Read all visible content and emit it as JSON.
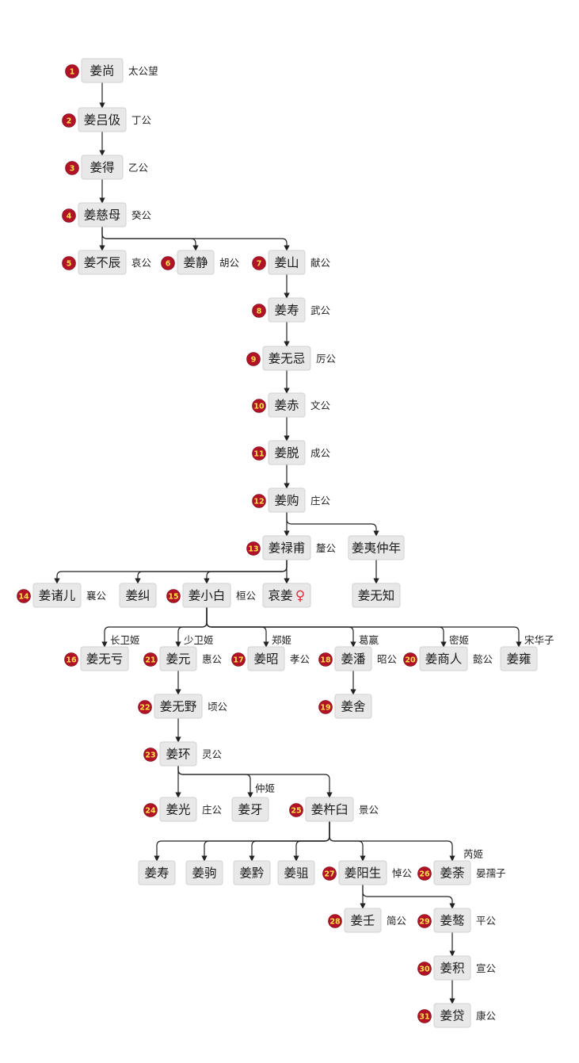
{
  "colors": {
    "badge": "#b11226",
    "badge_text": "#ffe24a",
    "box": "#e8e8e8",
    "edge": "#222222",
    "female_sign": "#e0303c"
  },
  "persons": [
    {
      "id": "p1",
      "name": "姜尚",
      "badge": "1",
      "title": "太公望"
    },
    {
      "id": "p2",
      "name": "姜吕伋",
      "badge": "2",
      "title": "丁公"
    },
    {
      "id": "p3",
      "name": "姜得",
      "badge": "3",
      "title": "乙公"
    },
    {
      "id": "p4",
      "name": "姜慈母",
      "badge": "4",
      "title": "癸公"
    },
    {
      "id": "p5",
      "name": "姜不辰",
      "badge": "5",
      "title": "哀公"
    },
    {
      "id": "p6",
      "name": "姜静",
      "badge": "6",
      "title": "胡公"
    },
    {
      "id": "p7",
      "name": "姜山",
      "badge": "7",
      "title": "献公"
    },
    {
      "id": "p8",
      "name": "姜寿",
      "badge": "8",
      "title": "武公"
    },
    {
      "id": "p9",
      "name": "姜无忌",
      "badge": "9",
      "title": "厉公"
    },
    {
      "id": "p10",
      "name": "姜赤",
      "badge": "10",
      "title": "文公"
    },
    {
      "id": "p11",
      "name": "姜脱",
      "badge": "11",
      "title": "成公"
    },
    {
      "id": "p12",
      "name": "姜购",
      "badge": "12",
      "title": "庄公"
    },
    {
      "id": "p13",
      "name": "姜禄甫",
      "badge": "13",
      "title": "釐公"
    },
    {
      "id": "pyz",
      "name": "姜夷仲年"
    },
    {
      "id": "pwz",
      "name": "姜无知"
    },
    {
      "id": "p14",
      "name": "姜诸儿",
      "badge": "14",
      "title": "襄公"
    },
    {
      "id": "pjiu",
      "name": "姜纠"
    },
    {
      "id": "p15",
      "name": "姜小白",
      "badge": "15",
      "title": "桓公"
    },
    {
      "id": "paj",
      "name": "哀姜",
      "female": "♀"
    },
    {
      "id": "p16",
      "name": "姜无亏",
      "badge": "16"
    },
    {
      "id": "p21",
      "name": "姜元",
      "badge": "21",
      "title": "惠公"
    },
    {
      "id": "p17",
      "name": "姜昭",
      "badge": "17",
      "title": "孝公"
    },
    {
      "id": "p18",
      "name": "姜潘",
      "badge": "18",
      "title": "昭公"
    },
    {
      "id": "p20",
      "name": "姜商人",
      "badge": "20",
      "title": "懿公"
    },
    {
      "id": "pyong",
      "name": "姜雍"
    },
    {
      "id": "p19",
      "name": "姜舍",
      "badge": "19"
    },
    {
      "id": "p22",
      "name": "姜无野",
      "badge": "22",
      "title": "顷公"
    },
    {
      "id": "p23",
      "name": "姜环",
      "badge": "23",
      "title": "灵公"
    },
    {
      "id": "p24",
      "name": "姜光",
      "badge": "24",
      "title": "庄公"
    },
    {
      "id": "pya",
      "name": "姜牙"
    },
    {
      "id": "p25",
      "name": "姜杵臼",
      "badge": "25",
      "title": "景公"
    },
    {
      "id": "pshou",
      "name": "姜寿"
    },
    {
      "id": "pju",
      "name": "姜驹"
    },
    {
      "id": "pqian",
      "name": "姜黔"
    },
    {
      "id": "pju2",
      "name": "姜驵"
    },
    {
      "id": "p27",
      "name": "姜阳生",
      "badge": "27",
      "title": "悼公"
    },
    {
      "id": "p26",
      "name": "姜荼",
      "badge": "26",
      "title": "晏孺子"
    },
    {
      "id": "p28",
      "name": "姜壬",
      "badge": "28",
      "title": "简公"
    },
    {
      "id": "p29",
      "name": "姜骜",
      "badge": "29",
      "title": "平公"
    },
    {
      "id": "p30",
      "name": "姜积",
      "badge": "30",
      "title": "宣公"
    },
    {
      "id": "p31",
      "name": "姜贷",
      "badge": "31",
      "title": "康公"
    }
  ],
  "mothers": [
    {
      "id": "m16",
      "label": "长卫姬"
    },
    {
      "id": "m21",
      "label": "少卫姬"
    },
    {
      "id": "m17",
      "label": "郑姬"
    },
    {
      "id": "m18",
      "label": "葛嬴"
    },
    {
      "id": "m20",
      "label": "密姬"
    },
    {
      "id": "myong",
      "label": "宋华子"
    },
    {
      "id": "mya",
      "label": "仲姬"
    },
    {
      "id": "m26",
      "label": "芮姬"
    }
  ],
  "edges": [
    [
      "p1",
      "p2"
    ],
    [
      "p2",
      "p3"
    ],
    [
      "p3",
      "p4"
    ],
    [
      "p4",
      "p5"
    ],
    [
      "p4",
      "p6"
    ],
    [
      "p4",
      "p7"
    ],
    [
      "p7",
      "p8"
    ],
    [
      "p8",
      "p9"
    ],
    [
      "p9",
      "p10"
    ],
    [
      "p10",
      "p11"
    ],
    [
      "p11",
      "p12"
    ],
    [
      "p12",
      "p13"
    ],
    [
      "p12",
      "pyz"
    ],
    [
      "pyz",
      "pwz"
    ],
    [
      "p13",
      "p14"
    ],
    [
      "p13",
      "pjiu"
    ],
    [
      "p13",
      "p15"
    ],
    [
      "p13",
      "paj"
    ],
    [
      "p15",
      "p16"
    ],
    [
      "p15",
      "p21"
    ],
    [
      "p15",
      "p17"
    ],
    [
      "p15",
      "p18"
    ],
    [
      "p15",
      "p20"
    ],
    [
      "p15",
      "pyong"
    ],
    [
      "p18",
      "p19"
    ],
    [
      "p21",
      "p22"
    ],
    [
      "p22",
      "p23"
    ],
    [
      "p23",
      "p24"
    ],
    [
      "p23",
      "pya"
    ],
    [
      "p23",
      "p25"
    ],
    [
      "p25",
      "pshou"
    ],
    [
      "p25",
      "pju"
    ],
    [
      "p25",
      "pqian"
    ],
    [
      "p25",
      "pju2"
    ],
    [
      "p25",
      "p27"
    ],
    [
      "p25",
      "p26"
    ],
    [
      "p27",
      "p28"
    ],
    [
      "p27",
      "p29"
    ],
    [
      "p29",
      "p30"
    ],
    [
      "p30",
      "p31"
    ]
  ]
}
